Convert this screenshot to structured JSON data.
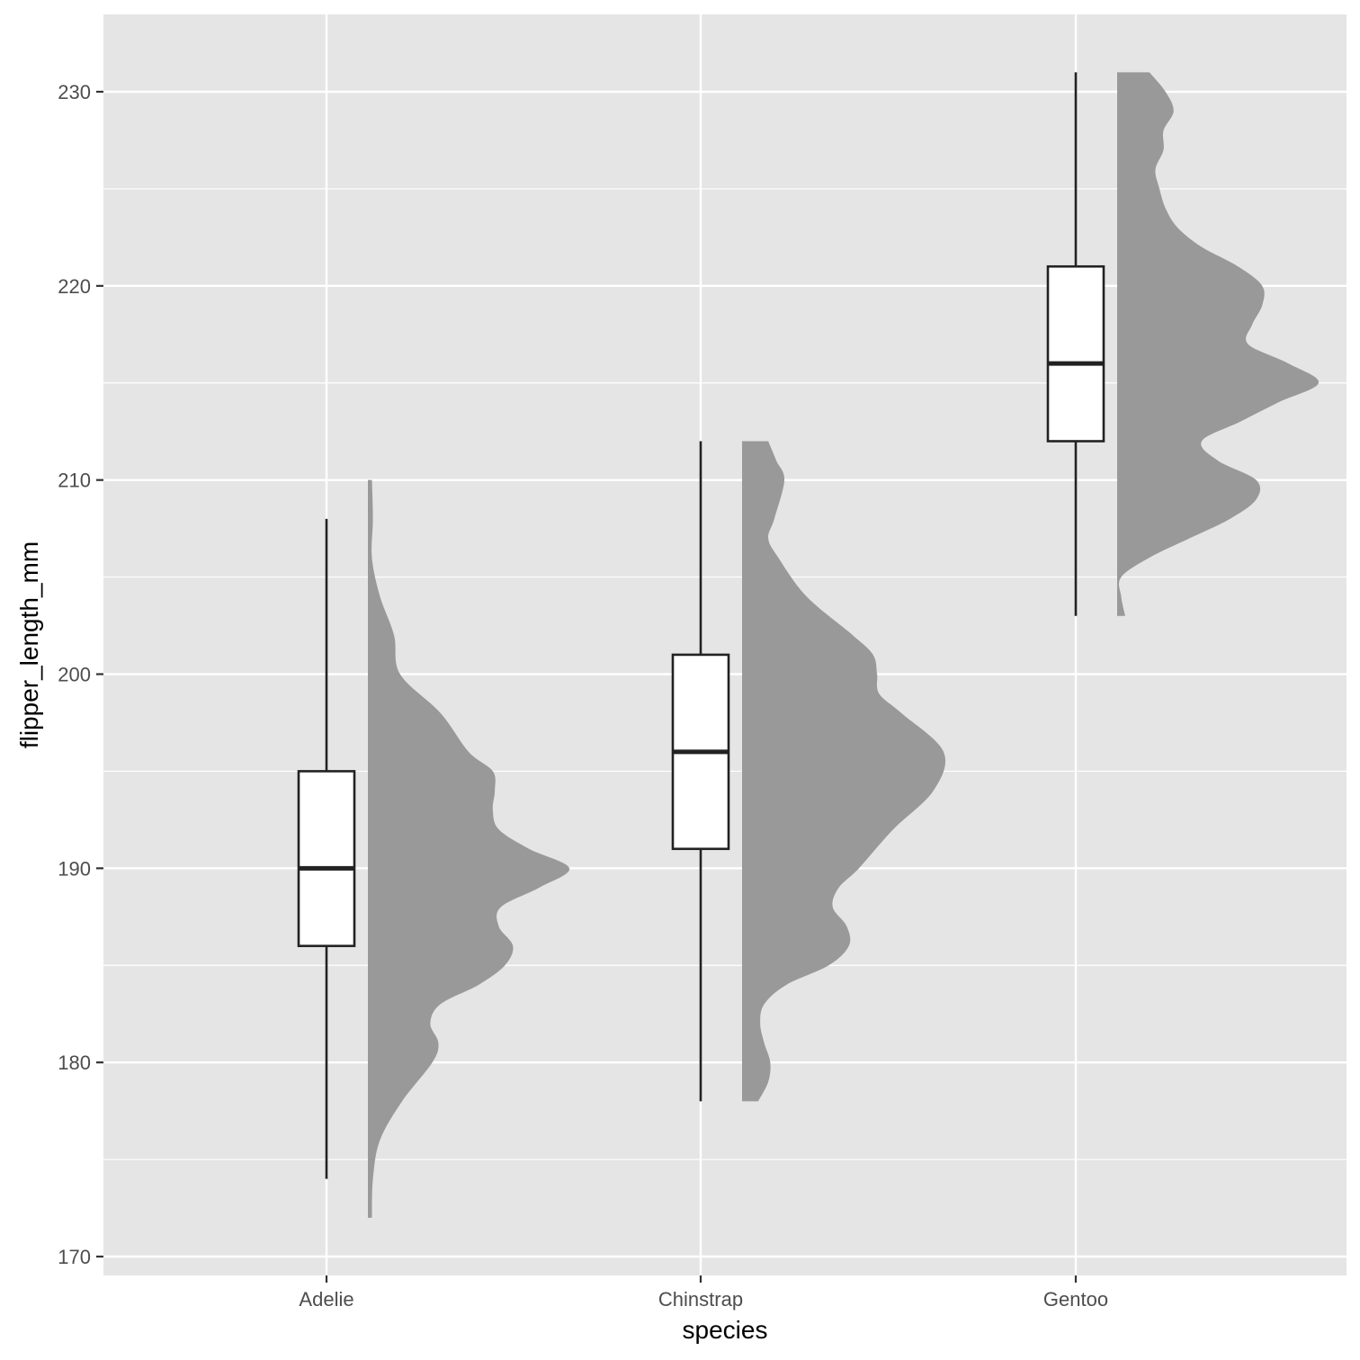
{
  "chart_data": {
    "type": "box",
    "xlabel": "species",
    "ylabel": "flipper_length_mm",
    "ylim": [
      169,
      233
    ],
    "y_ticks": [
      170,
      180,
      190,
      200,
      210,
      220,
      230
    ],
    "categories": [
      "Adelie",
      "Chinstrap",
      "Gentoo"
    ],
    "grid": true,
    "colors": {
      "panel": "#e5e5e5",
      "grid": "#ffffff",
      "density": "#999999",
      "box_line": "#222222",
      "box_fill": "#ffffff",
      "tick_text": "#4d4d4d"
    },
    "boxes": [
      {
        "species": "Adelie",
        "min": 174,
        "q1": 186,
        "median": 190,
        "q3": 195,
        "max": 208
      },
      {
        "species": "Chinstrap",
        "min": 178,
        "q1": 191,
        "median": 196,
        "q3": 201,
        "max": 212
      },
      {
        "species": "Gentoo",
        "min": 203,
        "q1": 212,
        "median": 216,
        "q3": 221,
        "max": 231
      }
    ],
    "densities": [
      {
        "species": "Adelie",
        "points": [
          [
            172,
            0.02
          ],
          [
            174,
            0.025
          ],
          [
            176,
            0.06
          ],
          [
            178,
            0.17
          ],
          [
            180,
            0.32
          ],
          [
            181,
            0.35
          ],
          [
            182,
            0.31
          ],
          [
            183,
            0.36
          ],
          [
            184,
            0.55
          ],
          [
            185,
            0.68
          ],
          [
            186,
            0.72
          ],
          [
            187,
            0.65
          ],
          [
            188,
            0.66
          ],
          [
            189,
            0.85
          ],
          [
            190,
            1.0
          ],
          [
            191,
            0.8
          ],
          [
            192,
            0.65
          ],
          [
            193,
            0.62
          ],
          [
            194,
            0.63
          ],
          [
            195,
            0.62
          ],
          [
            196,
            0.5
          ],
          [
            198,
            0.36
          ],
          [
            200,
            0.16
          ],
          [
            202,
            0.13
          ],
          [
            204,
            0.06
          ],
          [
            206,
            0.02
          ],
          [
            208,
            0.025
          ],
          [
            210,
            0.02
          ]
        ]
      },
      {
        "species": "Chinstrap",
        "points": [
          [
            178,
            0.08
          ],
          [
            179,
            0.13
          ],
          [
            180,
            0.14
          ],
          [
            181,
            0.11
          ],
          [
            182,
            0.09
          ],
          [
            183,
            0.11
          ],
          [
            184,
            0.22
          ],
          [
            185,
            0.43
          ],
          [
            186,
            0.53
          ],
          [
            187,
            0.52
          ],
          [
            188,
            0.45
          ],
          [
            189,
            0.48
          ],
          [
            190,
            0.58
          ],
          [
            192,
            0.75
          ],
          [
            194,
            0.95
          ],
          [
            196,
            1.0
          ],
          [
            198,
            0.79
          ],
          [
            199,
            0.68
          ],
          [
            200,
            0.67
          ],
          [
            201,
            0.65
          ],
          [
            202,
            0.55
          ],
          [
            204,
            0.32
          ],
          [
            206,
            0.18
          ],
          [
            207,
            0.13
          ],
          [
            208,
            0.16
          ],
          [
            210,
            0.21
          ],
          [
            211,
            0.17
          ],
          [
            212,
            0.13
          ]
        ]
      },
      {
        "species": "Gentoo",
        "points": [
          [
            203,
            0.04
          ],
          [
            204,
            0.02
          ],
          [
            205,
            0.02
          ],
          [
            206,
            0.16
          ],
          [
            207,
            0.36
          ],
          [
            208,
            0.56
          ],
          [
            209,
            0.69
          ],
          [
            210,
            0.69
          ],
          [
            211,
            0.5
          ],
          [
            212,
            0.42
          ],
          [
            213,
            0.61
          ],
          [
            214,
            0.8
          ],
          [
            215,
            1.0
          ],
          [
            216,
            0.85
          ],
          [
            217,
            0.65
          ],
          [
            218,
            0.67
          ],
          [
            219,
            0.72
          ],
          [
            220,
            0.72
          ],
          [
            221,
            0.6
          ],
          [
            222,
            0.42
          ],
          [
            223,
            0.3
          ],
          [
            224,
            0.24
          ],
          [
            225,
            0.21
          ],
          [
            226,
            0.19
          ],
          [
            227,
            0.23
          ],
          [
            228,
            0.23
          ],
          [
            229,
            0.28
          ],
          [
            230,
            0.24
          ],
          [
            231,
            0.16
          ]
        ]
      }
    ]
  }
}
